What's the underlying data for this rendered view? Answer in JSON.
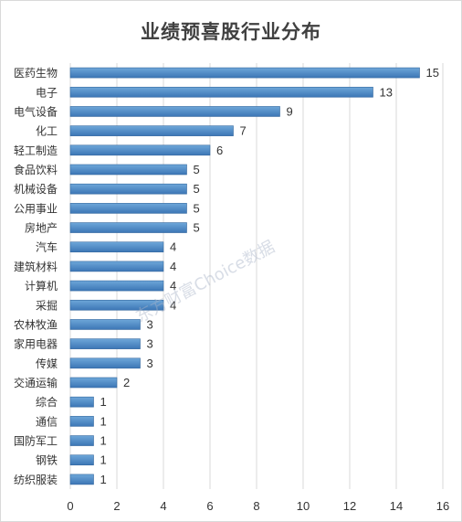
{
  "chart_data": {
    "type": "bar",
    "orientation": "horizontal",
    "title": "业绩预喜股行业分布",
    "categories": [
      "医药生物",
      "电子",
      "电气设备",
      "化工",
      "轻工制造",
      "食品饮料",
      "机械设备",
      "公用事业",
      "房地产",
      "汽车",
      "建筑材料",
      "计算机",
      "采掘",
      "农林牧渔",
      "家用电器",
      "传媒",
      "交通运输",
      "综合",
      "通信",
      "国防军工",
      "钢铁",
      "纺织服装"
    ],
    "values": [
      15,
      13,
      9,
      7,
      6,
      5,
      5,
      5,
      5,
      4,
      4,
      4,
      4,
      3,
      3,
      3,
      2,
      1,
      1,
      1,
      1,
      1
    ],
    "xlim": [
      0,
      16
    ],
    "xticks": [
      0,
      2,
      4,
      6,
      8,
      10,
      12,
      14,
      16
    ],
    "grid": true,
    "legend": "none",
    "colors": {
      "bar_top": "#6ea7d9",
      "bar_bottom": "#3c76b5",
      "grid": "#d9d9d9"
    },
    "watermark": "东方财富Choice数据"
  }
}
